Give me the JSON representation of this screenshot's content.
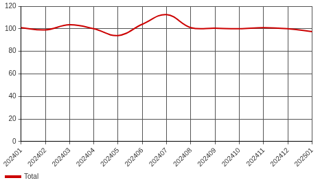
{
  "chart_data": {
    "type": "line",
    "categories": [
      "202401",
      "202402",
      "202403",
      "202404",
      "202405",
      "202406",
      "202407",
      "202408",
      "202409",
      "202410",
      "202411",
      "202412",
      "202501"
    ],
    "series": [
      {
        "name": "Total",
        "color": "#cc0000",
        "values": [
          101,
          99,
          103.5,
          100,
          94,
          104,
          112.5,
          101,
          100.5,
          100,
          101,
          100,
          97.5
        ]
      }
    ],
    "ylim": [
      0,
      120
    ],
    "yticks": [
      0,
      20,
      40,
      60,
      80,
      100,
      120
    ],
    "grid": true,
    "legend": "bottom-left",
    "line_style": "solid"
  }
}
